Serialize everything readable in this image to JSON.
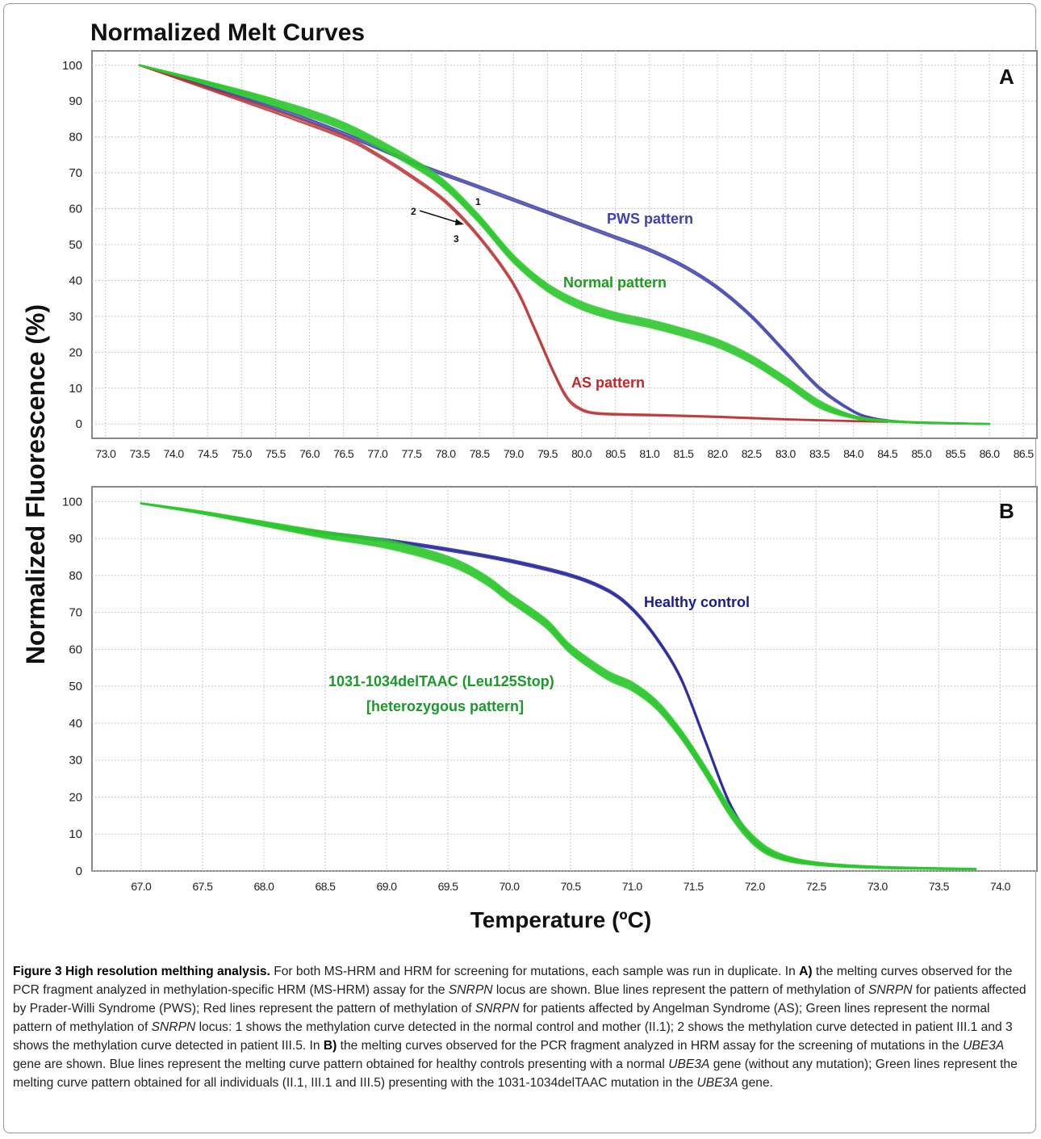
{
  "figure": {
    "title": "Normalized Melt Curves",
    "ylabel": "Normalized Fluorescence (%)",
    "xlabel": "Temperature (ºC)"
  },
  "caption": {
    "label": "Figure 3 High resolution melthing analysis.",
    "parts": [
      {
        "t": " For both MS-HRM and HRM for screening for mutations, each sample was run in duplicate. In "
      },
      {
        "b": "A)"
      },
      {
        "t": " the melting curves observed for the PCR fragment analyzed in methylation-specific HRM (MS-HRM) assay for the "
      },
      {
        "i": "SNRPN"
      },
      {
        "t": " locus are shown. Blue lines represent the pattern of methylation of "
      },
      {
        "i": "SNRPN"
      },
      {
        "t": " for patients affected by Prader-Willi Syndrome (PWS); Red lines represent the pattern of methylation of "
      },
      {
        "i": "SNRPN"
      },
      {
        "t": " for patients affected by Angelman Syndrome (AS); Green lines represent the normal pattern of methylation of "
      },
      {
        "i": "SNRPN"
      },
      {
        "t": " locus: 1 shows the methylation curve detected in the normal control and mother (II.1); 2 shows the methylation curve detected in patient III.1 and 3 shows the methylation curve detected in patient III.5. In "
      },
      {
        "b": "B)"
      },
      {
        "t": " the melting curves observed for the PCR fragment analyzed in HRM assay for the screening of mutations in the "
      },
      {
        "i": "UBE3A"
      },
      {
        "t": " gene are shown. Blue lines represent the melting curve pattern obtained for healthy controls presenting with a normal "
      },
      {
        "i": "UBE3A"
      },
      {
        "t": " gene (without any mutation); Green lines represent the melting curve pattern obtained for all individuals (II.1, III.1 and III.5) presenting with the 1031-1034delTAAC mutation in the "
      },
      {
        "i": "UBE3A"
      },
      {
        "t": " gene."
      }
    ]
  },
  "chart_data": [
    {
      "type": "line",
      "panel": "A",
      "xlim": [
        72.8,
        86.7
      ],
      "ylim": [
        -4,
        104
      ],
      "xticks": [
        73.0,
        73.5,
        74.0,
        74.5,
        75.0,
        75.5,
        76.0,
        76.5,
        77.0,
        77.5,
        78.0,
        78.5,
        79.0,
        79.5,
        80.0,
        80.5,
        81.0,
        81.5,
        82.0,
        82.5,
        83.0,
        83.5,
        84.0,
        84.5,
        85.0,
        85.5,
        86.0,
        86.5
      ],
      "yticks": [
        0,
        10,
        20,
        30,
        40,
        50,
        60,
        70,
        80,
        90,
        100
      ],
      "grid": true,
      "colors": {
        "PWS": "#3a3aa8",
        "AS": "#b83232",
        "Normal": "#2ec82e",
        "label_PWS": "#3f3fb6",
        "label_AS": "#c32626",
        "label_Normal": "#1f9a1f"
      },
      "series": [
        {
          "name": "PWS pattern",
          "color": "PWS",
          "copies": 2,
          "x": [
            73.5,
            74.5,
            75.5,
            76.5,
            77.5,
            78.5,
            79.0,
            79.5,
            80.0,
            80.5,
            81.0,
            81.5,
            82.0,
            82.5,
            83.0,
            83.5,
            84.0,
            84.3,
            84.6,
            84.9,
            85.3,
            86.0
          ],
          "y": [
            100,
            94,
            88,
            81,
            73,
            66,
            62.5,
            59,
            55.5,
            52,
            48.5,
            44,
            38,
            30,
            20,
            10,
            3.5,
            1.6,
            0.8,
            0.4,
            0.2,
            0
          ]
        },
        {
          "name": "AS pattern",
          "color": "AS",
          "copies": 2,
          "x": [
            73.5,
            74.5,
            75.5,
            76.5,
            77.0,
            77.5,
            78.0,
            78.5,
            79.0,
            79.3,
            79.6,
            79.8,
            80.0,
            80.2,
            80.5,
            81.0,
            82.0,
            83.0,
            84.0,
            84.5
          ],
          "y": [
            100,
            93.5,
            87,
            80,
            75,
            69,
            62,
            52,
            39,
            27,
            14,
            7,
            4,
            3,
            2.7,
            2.5,
            2,
            1.3,
            0.8,
            0.6
          ]
        },
        {
          "name": "Normal pattern",
          "color": "Normal",
          "copies": 6,
          "spread": 2.0,
          "x": [
            73.5,
            74.5,
            75.5,
            76.5,
            77.5,
            78.0,
            78.5,
            79.0,
            79.5,
            80.0,
            80.5,
            81.0,
            81.5,
            82.0,
            82.5,
            83.0,
            83.5,
            84.0,
            84.5,
            85.0,
            86.0
          ],
          "y": [
            100,
            95,
            89.5,
            83,
            73,
            66.5,
            57,
            46,
            38,
            33,
            30,
            28,
            25.5,
            22.5,
            18,
            12,
            5.5,
            2,
            0.8,
            0.4,
            0
          ]
        }
      ],
      "annotations": {
        "pws": "PWS pattern",
        "normal": "Normal pattern",
        "as": "AS pattern",
        "num1": "1",
        "num2": "2",
        "num3": "3"
      }
    },
    {
      "type": "line",
      "panel": "B",
      "xlim": [
        66.6,
        74.3
      ],
      "ylim": [
        0,
        104
      ],
      "xticks": [
        67.0,
        67.5,
        68.0,
        68.5,
        69.0,
        69.5,
        70.0,
        70.5,
        71.0,
        71.5,
        72.0,
        72.5,
        73.0,
        73.5,
        74.0
      ],
      "yticks": [
        0,
        10,
        20,
        30,
        40,
        50,
        60,
        70,
        80,
        90,
        100
      ],
      "grid": true,
      "colors": {
        "Healthy": "#2a2aa0",
        "Mutant": "#2ec82e",
        "label_Healthy": "#1c1c8c",
        "label_Mutant": "#1a9a2a"
      },
      "series": [
        {
          "name": "Healthy control",
          "color": "Healthy",
          "copies": 3,
          "x": [
            67.0,
            67.5,
            68.0,
            68.5,
            69.0,
            69.5,
            70.0,
            70.5,
            70.8,
            71.0,
            71.2,
            71.4,
            71.6,
            71.8,
            72.0,
            72.2,
            72.5,
            73.0,
            73.8
          ],
          "y": [
            99.5,
            97,
            94,
            91.5,
            89.5,
            87,
            84,
            80,
            76,
            71,
            63,
            52,
            35,
            18,
            8,
            4,
            2,
            1,
            0.5
          ]
        },
        {
          "name": "1031-1034delTAAC (Leu125Stop)",
          "color": "Mutant",
          "copies": 7,
          "spread": 2.2,
          "x": [
            67.0,
            67.5,
            68.0,
            68.5,
            69.0,
            69.5,
            69.8,
            70.0,
            70.3,
            70.5,
            70.8,
            71.0,
            71.2,
            71.4,
            71.6,
            71.8,
            72.0,
            72.2,
            72.5,
            73.0,
            73.8
          ],
          "y": [
            99.5,
            97,
            94,
            91,
            88.5,
            84,
            79,
            74,
            67,
            60,
            53,
            50,
            45,
            37,
            27,
            16,
            8,
            4,
            2,
            1,
            0.5
          ]
        }
      ],
      "annotations": {
        "healthy": "Healthy control",
        "mut1": "1031-1034delTAAC (Leu125Stop)",
        "mut2": "[heterozygous pattern]"
      }
    }
  ]
}
